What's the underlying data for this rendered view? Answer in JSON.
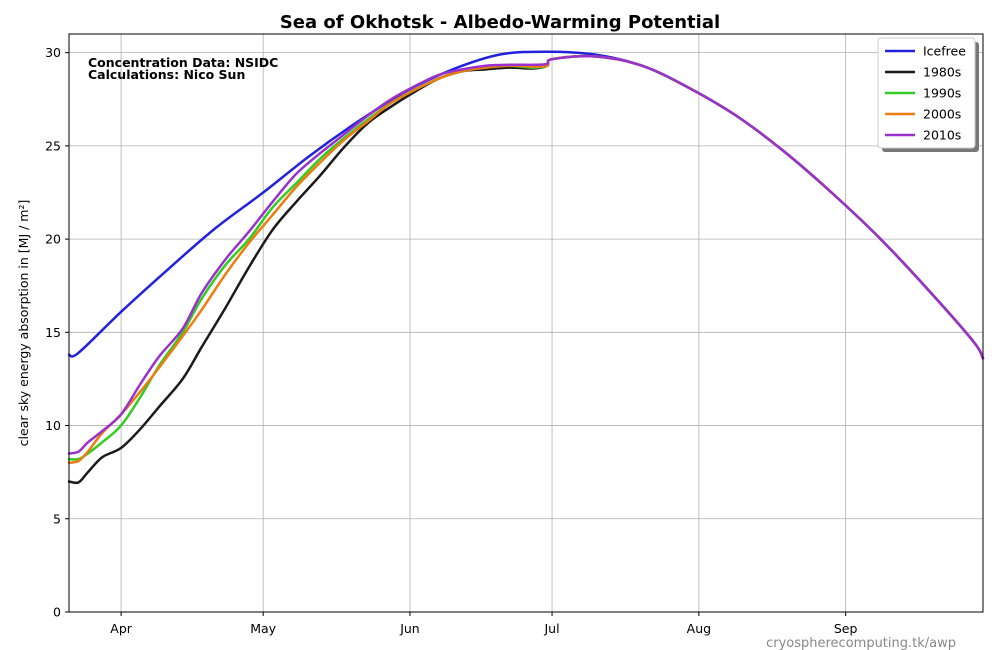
{
  "chart_data": {
    "type": "line",
    "title": "Sea of Okhotsk - Albedo-Warming Potential",
    "ylabel": "clear sky energy absorption in  [MJ / m²]",
    "xlabel": "",
    "xlim": [
      "Mar 21",
      "Sep 30"
    ],
    "ylim": [
      0,
      31
    ],
    "grid": true,
    "legend_position": "top-right",
    "annotations": [
      "Concentration Data: NSIDC",
      "Calculations: Nico Sun"
    ],
    "credit": "cryospherecomputing.tk/awp",
    "x_ticks": [
      {
        "label": "Apr",
        "date": "Apr 1"
      },
      {
        "label": "May",
        "date": "May 1"
      },
      {
        "label": "Jun",
        "date": "Jun 1"
      },
      {
        "label": "Jul",
        "date": "Jul 1"
      },
      {
        "label": "Aug",
        "date": "Aug 1"
      },
      {
        "label": "Sep",
        "date": "Sep 1"
      }
    ],
    "y_ticks": [
      0,
      5,
      10,
      15,
      20,
      25,
      30
    ],
    "series": [
      {
        "name": "Icefree",
        "color": "#2222dd",
        "x": [
          "Mar 21",
          "Mar 23",
          "Apr 1",
          "Apr 11",
          "Apr 21",
          "May 1",
          "May 11",
          "May 21",
          "May 31",
          "Jun 10",
          "Jun 20",
          "Jun 30",
          "Jul 10",
          "Jul 20",
          "Jul 30",
          "Aug 9",
          "Aug 19",
          "Aug 29",
          "Sep 8",
          "Sep 18",
          "Sep 28",
          "Sep 30"
        ],
        "values": [
          13.8,
          13.9,
          16.1,
          18.4,
          20.6,
          22.5,
          24.5,
          26.3,
          27.9,
          29.1,
          29.9,
          30.05,
          29.9,
          29.3,
          28.1,
          26.6,
          24.7,
          22.5,
          20.1,
          17.4,
          14.5,
          13.6
        ]
      },
      {
        "name": "1980s",
        "color": "#1a1a1a",
        "x": [
          "Mar 21",
          "Mar 23",
          "Mar 25",
          "Mar 28",
          "Apr 1",
          "Apr 5",
          "Apr 9",
          "Apr 14",
          "Apr 18",
          "Apr 23",
          "Apr 28",
          "May 3",
          "May 8",
          "May 13",
          "May 18",
          "May 23",
          "May 28",
          "Jun 2",
          "Jun 7",
          "Jun 12",
          "Jun 17",
          "Jun 22",
          "Jun 27",
          "Jun 30",
          "Jul 1",
          "Jul 10",
          "Jul 20",
          "Jul 30",
          "Aug 9",
          "Aug 19",
          "Aug 29",
          "Sep 8",
          "Sep 18",
          "Sep 28",
          "Sep 30"
        ],
        "values": [
          7.0,
          6.95,
          7.5,
          8.3,
          8.8,
          9.8,
          11.0,
          12.5,
          14.2,
          16.3,
          18.5,
          20.5,
          22.0,
          23.4,
          24.9,
          26.2,
          27.1,
          27.9,
          28.6,
          29.0,
          29.1,
          29.2,
          29.15,
          29.3,
          29.65,
          29.8,
          29.3,
          28.1,
          26.6,
          24.7,
          22.5,
          20.1,
          17.4,
          14.5,
          13.6
        ]
      },
      {
        "name": "1990s",
        "color": "#33cc22",
        "x": [
          "Mar 21",
          "Mar 23",
          "Mar 25",
          "Mar 28",
          "Apr 1",
          "Apr 5",
          "Apr 9",
          "Apr 14",
          "Apr 18",
          "Apr 23",
          "Apr 28",
          "May 3",
          "May 8",
          "May 13",
          "May 18",
          "May 23",
          "May 28",
          "Jun 2",
          "Jun 7",
          "Jun 12",
          "Jun 17",
          "Jun 22",
          "Jun 27",
          "Jun 30",
          "Jul 1",
          "Jul 10",
          "Jul 20",
          "Jul 30",
          "Aug 9",
          "Aug 19",
          "Aug 29",
          "Sep 8",
          "Sep 18",
          "Sep 28",
          "Sep 30"
        ],
        "values": [
          8.2,
          8.2,
          8.5,
          9.1,
          10.0,
          11.5,
          13.2,
          15.0,
          16.8,
          18.6,
          20.0,
          21.7,
          23.0,
          24.3,
          25.4,
          26.4,
          27.3,
          28.0,
          28.6,
          29.0,
          29.2,
          29.3,
          29.2,
          29.3,
          29.65,
          29.8,
          29.3,
          28.1,
          26.6,
          24.7,
          22.5,
          20.1,
          17.4,
          14.5,
          13.6
        ]
      },
      {
        "name": "2000s",
        "color": "#ee7d11",
        "x": [
          "Mar 21",
          "Mar 23",
          "Mar 25",
          "Mar 28",
          "Apr 1",
          "Apr 5",
          "Apr 9",
          "Apr 14",
          "Apr 18",
          "Apr 23",
          "Apr 28",
          "May 3",
          "May 8",
          "May 13",
          "May 18",
          "May 23",
          "May 28",
          "Jun 2",
          "Jun 7",
          "Jun 12",
          "Jun 17",
          "Jun 22",
          "Jun 27",
          "Jun 30",
          "Jul 1",
          "Jul 10",
          "Jul 20",
          "Jul 30",
          "Aug 9",
          "Aug 19",
          "Aug 29",
          "Sep 8",
          "Sep 18",
          "Sep 28",
          "Sep 30"
        ],
        "values": [
          8.0,
          8.1,
          8.6,
          9.6,
          10.6,
          11.8,
          13.1,
          14.8,
          16.2,
          18.1,
          19.8,
          21.3,
          22.8,
          24.1,
          25.3,
          26.3,
          27.3,
          28.0,
          28.6,
          29.0,
          29.2,
          29.3,
          29.25,
          29.3,
          29.65,
          29.8,
          29.3,
          28.1,
          26.6,
          24.7,
          22.5,
          20.1,
          17.4,
          14.5,
          13.6
        ]
      },
      {
        "name": "2010s",
        "color": "#9932cc",
        "x": [
          "Mar 21",
          "Mar 23",
          "Mar 25",
          "Mar 28",
          "Apr 1",
          "Apr 5",
          "Apr 9",
          "Apr 14",
          "Apr 18",
          "Apr 23",
          "Apr 28",
          "May 3",
          "May 8",
          "May 13",
          "May 18",
          "May 23",
          "May 28",
          "Jun 2",
          "Jun 7",
          "Jun 12",
          "Jun 17",
          "Jun 22",
          "Jun 27",
          "Jun 30",
          "Jul 1",
          "Jul 10",
          "Jul 20",
          "Jul 30",
          "Aug 9",
          "Aug 19",
          "Aug 29",
          "Sep 8",
          "Sep 18",
          "Sep 28",
          "Sep 30"
        ],
        "values": [
          8.5,
          8.6,
          9.1,
          9.7,
          10.6,
          12.2,
          13.7,
          15.2,
          17.1,
          18.9,
          20.4,
          22.0,
          23.5,
          24.6,
          25.6,
          26.6,
          27.5,
          28.2,
          28.8,
          29.1,
          29.3,
          29.35,
          29.35,
          29.4,
          29.65,
          29.8,
          29.3,
          28.1,
          26.6,
          24.7,
          22.5,
          20.1,
          17.4,
          14.5,
          13.6
        ]
      }
    ]
  }
}
